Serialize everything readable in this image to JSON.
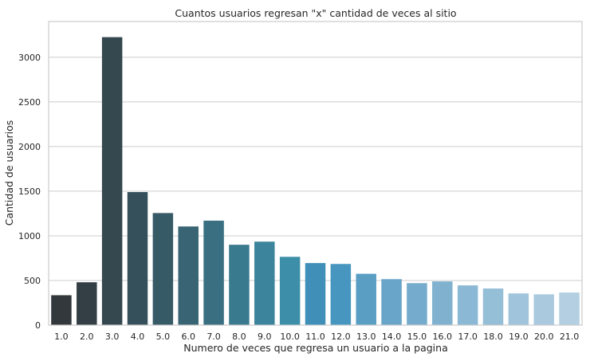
{
  "chart_data": {
    "type": "bar",
    "title": "Cuantos usuarios regresan \"x\" cantidad de veces al sitio",
    "xlabel": "Numero de veces que regresa un usuario a la pagina",
    "ylabel": "Cantidad de usuarios",
    "categories": [
      "1.0",
      "2.0",
      "3.0",
      "4.0",
      "5.0",
      "6.0",
      "7.0",
      "8.0",
      "9.0",
      "10.0",
      "11.0",
      "12.0",
      "13.0",
      "14.0",
      "15.0",
      "16.0",
      "17.0",
      "18.0",
      "19.0",
      "20.0",
      "21.0"
    ],
    "values": [
      335,
      480,
      3225,
      1490,
      1255,
      1105,
      1170,
      900,
      935,
      765,
      695,
      685,
      575,
      515,
      470,
      490,
      445,
      410,
      355,
      345,
      365
    ],
    "ylim": [
      0,
      3400
    ],
    "yticks": [
      0,
      500,
      1000,
      1500,
      2000,
      2500,
      3000
    ],
    "grid": true,
    "colors": [
      "#33383c",
      "#343e45",
      "#35474f",
      "#36505b",
      "#375a67",
      "#386473",
      "#396f80",
      "#3a7a8e",
      "#3c849b",
      "#3d8fa9",
      "#3f8fb8",
      "#4796c0",
      "#5b9ec4",
      "#69a5c8",
      "#75abcc",
      "#80b2d0",
      "#8bb8d4",
      "#95bed7",
      "#a0c4db",
      "#aac9de",
      "#b4cfe2"
    ]
  }
}
